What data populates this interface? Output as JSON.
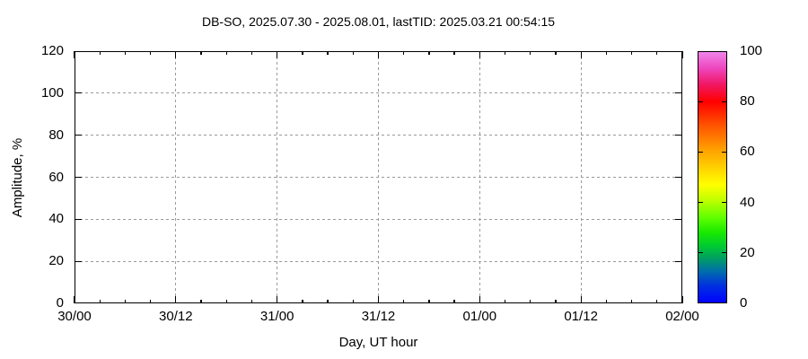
{
  "chart_data": {
    "type": "scatter",
    "title": "DB-SO, 2025.07.30 - 2025.08.01, lastTID: 2025.03.21 00:54:15",
    "xlabel": "Day, UT hour",
    "ylabel": "Amplitude, %",
    "x_tick_labels": [
      "30/00",
      "30/12",
      "31/00",
      "31/12",
      "01/00",
      "01/12",
      "02/00"
    ],
    "x_minor_ticks_per_major_interval": 3,
    "y_tick_labels": [
      "0",
      "20",
      "40",
      "60",
      "80",
      "100",
      "120"
    ],
    "ylim": [
      0,
      120
    ],
    "grid": true,
    "legend_position": "none",
    "series": [],
    "points": [],
    "colorbar": {
      "min": 0,
      "max": 100,
      "tick_labels": [
        "0",
        "20",
        "40",
        "60",
        "80",
        "100"
      ],
      "inner_tick_values": [
        20,
        40,
        60,
        80
      ],
      "gradient_stops": [
        {
          "pos": 0.0,
          "color": "#0000ff"
        },
        {
          "pos": 0.07,
          "color": "#0030e0"
        },
        {
          "pos": 0.13,
          "color": "#0070a8"
        },
        {
          "pos": 0.18,
          "color": "#00a060"
        },
        {
          "pos": 0.23,
          "color": "#00cc30"
        },
        {
          "pos": 0.28,
          "color": "#18e800"
        },
        {
          "pos": 0.34,
          "color": "#60ff00"
        },
        {
          "pos": 0.41,
          "color": "#c0ff00"
        },
        {
          "pos": 0.47,
          "color": "#ffff00"
        },
        {
          "pos": 0.54,
          "color": "#ffd000"
        },
        {
          "pos": 0.62,
          "color": "#ff9800"
        },
        {
          "pos": 0.71,
          "color": "#ff5000"
        },
        {
          "pos": 0.8,
          "color": "#ff0000"
        },
        {
          "pos": 0.87,
          "color": "#f01868"
        },
        {
          "pos": 0.93,
          "color": "#ee44bb"
        },
        {
          "pos": 1.0,
          "color": "#ee88ee"
        }
      ]
    },
    "colors": {
      "grid": "#9a9a9a",
      "border": "#000000",
      "text": "#000000",
      "background": "#ffffff"
    }
  }
}
